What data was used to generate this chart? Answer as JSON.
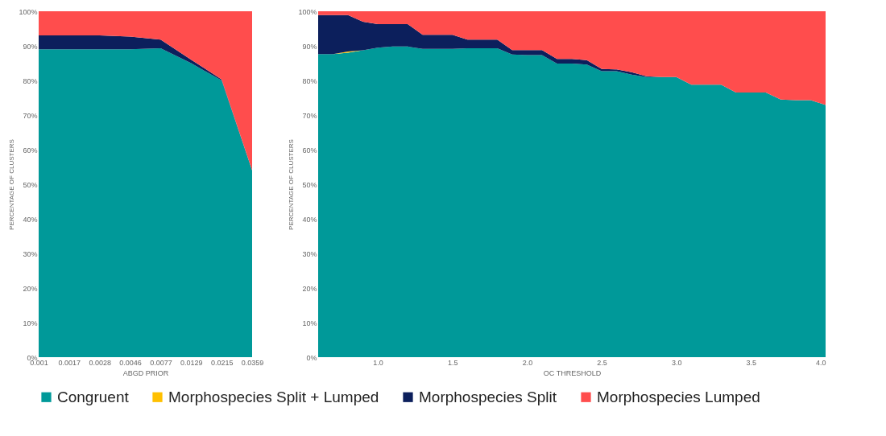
{
  "chart_data": [
    {
      "type": "area",
      "stacked": true,
      "xlabel": "ABGD PRIOR",
      "ylabel": "PERCENTAGE OF CLUSTERS",
      "categories": [
        "0.001",
        "0.0017",
        "0.0028",
        "0.0046",
        "0.0077",
        "0.0129",
        "0.0215",
        "0.0359"
      ],
      "ylim": [
        0,
        100
      ],
      "yticks": [
        {
          "value": 0,
          "label": "0%"
        },
        {
          "value": 10,
          "label": "10%"
        },
        {
          "value": 20,
          "label": "20%"
        },
        {
          "value": 30,
          "label": "30%"
        },
        {
          "value": 40,
          "label": "40%"
        },
        {
          "value": 50,
          "label": "50%"
        },
        {
          "value": 60,
          "label": "60%"
        },
        {
          "value": 70,
          "label": "70%"
        },
        {
          "value": 80,
          "label": "80%"
        },
        {
          "value": 90,
          "label": "90%"
        },
        {
          "value": 100,
          "label": "100%"
        }
      ],
      "grid": false,
      "legend": "bottom",
      "series": [
        {
          "name": "Congruent",
          "color": "#009999",
          "values": [
            89,
            89,
            89,
            89,
            89.3,
            85,
            80,
            54
          ]
        },
        {
          "name": "Morphospecies Split",
          "color": "#0c1f5c",
          "values": [
            4,
            4,
            4,
            3.7,
            2.5,
            1,
            0.3,
            0
          ]
        },
        {
          "name": "Morphospecies Lumped",
          "color": "#ff4d4d",
          "values": [
            7,
            7,
            7,
            7.3,
            8.2,
            14,
            19.7,
            46
          ]
        }
      ]
    },
    {
      "type": "area",
      "stacked": true,
      "xlabel": "OC THRESHOLD",
      "ylabel": "PERCENTAGE OF CLUSTERS",
      "x": [
        0.6,
        0.7,
        0.8,
        0.9,
        1.0,
        1.1,
        1.2,
        1.3,
        1.4,
        1.5,
        1.6,
        1.7,
        1.8,
        1.9,
        2.0,
        2.1,
        2.2,
        2.3,
        2.4,
        2.5,
        2.6,
        2.7,
        2.8,
        2.9,
        3.0,
        3.1,
        3.2,
        3.3,
        3.4,
        3.5,
        3.6,
        3.7,
        3.8,
        3.9,
        4.0
      ],
      "xlim": [
        0.6,
        4.0
      ],
      "xticks": [
        {
          "value": 1,
          "label": "1.0"
        },
        1.5,
        {
          "value": 2,
          "label": "2.0"
        },
        2.5,
        {
          "value": 3,
          "label": "3.0"
        },
        3.5,
        {
          "value": 4,
          "label": "4.0"
        }
      ],
      "ylim": [
        0,
        100
      ],
      "yticks": [
        {
          "value": 0,
          "label": "0%"
        },
        {
          "value": 10,
          "label": "10%"
        },
        {
          "value": 20,
          "label": "20%"
        },
        {
          "value": 30,
          "label": "30%"
        },
        {
          "value": 40,
          "label": "40%"
        },
        {
          "value": 50,
          "label": "50%"
        },
        {
          "value": 60,
          "label": "60%"
        },
        {
          "value": 70,
          "label": "70%"
        },
        {
          "value": 80,
          "label": "80%"
        },
        {
          "value": 90,
          "label": "90%"
        },
        {
          "value": 100,
          "label": "100%"
        }
      ],
      "grid": false,
      "legend": "bottom",
      "series": [
        {
          "name": "Congruent",
          "color": "#009999",
          "values": [
            87.6,
            87.6,
            88,
            88.7,
            89.5,
            89.8,
            89.8,
            89.1,
            89.1,
            89.1,
            89.3,
            89.3,
            89.3,
            87.5,
            87.3,
            87.3,
            84.9,
            84.9,
            84.6,
            82.7,
            82.7,
            81.7,
            81,
            81,
            81,
            78.8,
            78.8,
            78.8,
            76.5,
            76.5,
            76.5,
            74.5,
            74.3,
            74.3,
            72.9
          ]
        },
        {
          "name": "Morphospecies Split + Lumped",
          "color": "#ffc000",
          "values": [
            0,
            0,
            0.4,
            0,
            0,
            0,
            0,
            0,
            0,
            0,
            0,
            0,
            0,
            0,
            0,
            0,
            0,
            0,
            0,
            0,
            0,
            0,
            0,
            0,
            0,
            0,
            0,
            0,
            0,
            0,
            0,
            0,
            0,
            0,
            0
          ]
        },
        {
          "name": "Morphospecies Split",
          "color": "#0c1f5c",
          "values": [
            11.3,
            11.3,
            10.5,
            8.3,
            6.8,
            6.5,
            6.5,
            4.1,
            4.1,
            4.1,
            2.5,
            2.5,
            2.5,
            1.3,
            1.5,
            1.5,
            1.3,
            1.3,
            1.3,
            0.6,
            0.5,
            0.7,
            0.2,
            0,
            0,
            0,
            0,
            0,
            0,
            0,
            0,
            0,
            0,
            0,
            0
          ]
        },
        {
          "name": "Morphospecies Lumped",
          "color": "#ff4d4d",
          "values": [
            1.1,
            1.1,
            1.1,
            3,
            3.7,
            3.7,
            3.7,
            6.8,
            6.8,
            6.8,
            8.2,
            8.2,
            8.2,
            11.2,
            11.2,
            11.2,
            13.8,
            13.8,
            14.1,
            16.7,
            16.8,
            17.6,
            18.8,
            19,
            19,
            21.2,
            21.2,
            21.2,
            23.5,
            23.5,
            23.5,
            25.5,
            25.7,
            25.7,
            27.1
          ]
        }
      ]
    }
  ]
}
